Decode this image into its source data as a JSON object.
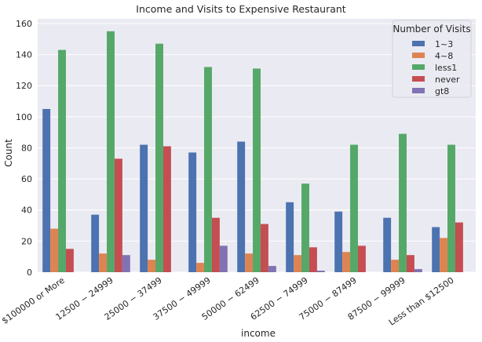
{
  "chart_data": {
    "type": "bar",
    "title": "Income and Visits to Expensive Restaurant",
    "xlabel": "income",
    "ylabel": "Count",
    "ylim": [
      0,
      163
    ],
    "yticks": [
      0,
      20,
      40,
      60,
      80,
      100,
      120,
      140,
      160
    ],
    "grid": true,
    "legend_title": "Number of Visits",
    "legend_position": "top-right",
    "categories": [
      "$100000 or More",
      "$12500 - $24999",
      "$25000 - $37499",
      "$37500 - $49999",
      "$50000 - $62499",
      "$62500 - $74999",
      "$75000 - $87499",
      "$87500 - $99999",
      "Less than $12500"
    ],
    "category_labels": [
      "$100000 or More",
      "12500 − 24999",
      "25000 − 37499",
      "37500 − 49999",
      "50000 − 62499",
      "62500 − 74999",
      "75000 − 87499",
      "87500 − 99999",
      "Less than $12500"
    ],
    "series": [
      {
        "name": "1~3",
        "color": "#4c72b0",
        "values": [
          105,
          37,
          82,
          77,
          84,
          45,
          39,
          35,
          29
        ]
      },
      {
        "name": "4~8",
        "color": "#dd8452",
        "values": [
          28,
          12,
          8,
          6,
          12,
          11,
          13,
          8,
          22
        ]
      },
      {
        "name": "less1",
        "color": "#55a868",
        "values": [
          143,
          155,
          147,
          132,
          131,
          57,
          82,
          89,
          82
        ]
      },
      {
        "name": "never",
        "color": "#c44e52",
        "values": [
          15,
          73,
          81,
          35,
          31,
          16,
          17,
          11,
          32
        ]
      },
      {
        "name": "gt8",
        "color": "#8172b3",
        "values": [
          0,
          11,
          0,
          17,
          4,
          1,
          0,
          2,
          0
        ]
      }
    ]
  },
  "style": {
    "plot_background": "#eaeaf2",
    "grid_color": "#ffffff"
  }
}
